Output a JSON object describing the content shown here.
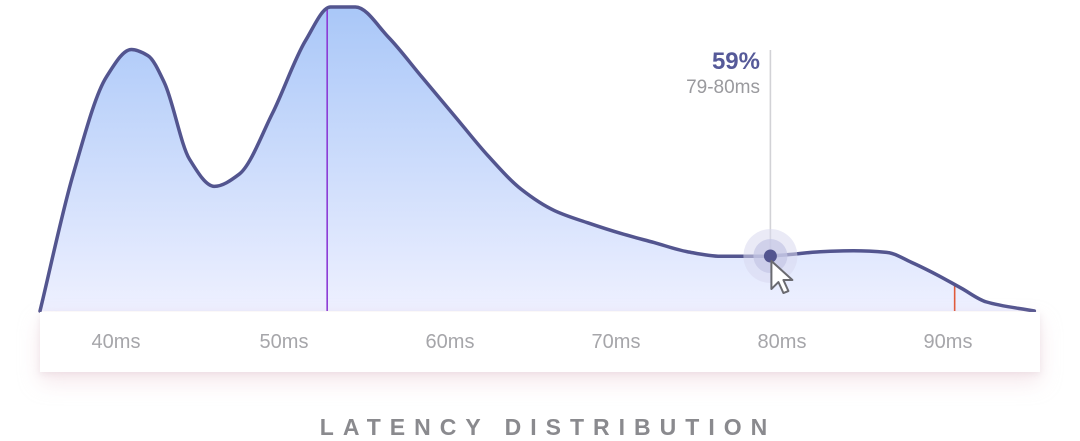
{
  "chart_data": {
    "type": "area",
    "title": "LATENCY DISTRIBUTION",
    "xlabel": "",
    "ylabel": "",
    "x_unit": "ms",
    "xlim": [
      36,
      96
    ],
    "ylim": [
      0,
      100
    ],
    "tick_labels": [
      "40ms",
      "50ms",
      "60ms",
      "70ms",
      "80ms",
      "90ms"
    ],
    "tick_values": [
      40,
      50,
      60,
      70,
      80,
      90
    ],
    "x": [
      36,
      38,
      40,
      41.5,
      42.5,
      43.5,
      45,
      46.5,
      48,
      50,
      52,
      53.5,
      55,
      57,
      59,
      61,
      63,
      65,
      67,
      69,
      71,
      73,
      75,
      77,
      79.5,
      81,
      83,
      85,
      87,
      88.5,
      90,
      91.5,
      93,
      95.9
    ],
    "values": [
      0,
      45,
      77,
      86,
      84,
      75,
      50,
      41,
      45,
      65,
      89,
      100,
      100,
      90,
      77,
      64,
      51,
      40,
      33,
      29,
      25.5,
      22.5,
      19.5,
      18,
      18,
      18.5,
      19.5,
      19.8,
      19.3,
      16,
      12,
      7.5,
      3,
      0
    ],
    "colors": {
      "line": "#53558f",
      "fill_top": "#a9c7f8",
      "fill_bottom": "#eef0ff",
      "marker_line_1": "#8b3ad6",
      "marker_line_2": "#e05a3a",
      "crosshair": "#d2d2d6"
    },
    "marker_lines": [
      53.3,
      91.1
    ],
    "hover": {
      "x": 80,
      "value_label": "59%",
      "range_label": "79-80ms"
    },
    "grid": false,
    "legend": "none"
  }
}
